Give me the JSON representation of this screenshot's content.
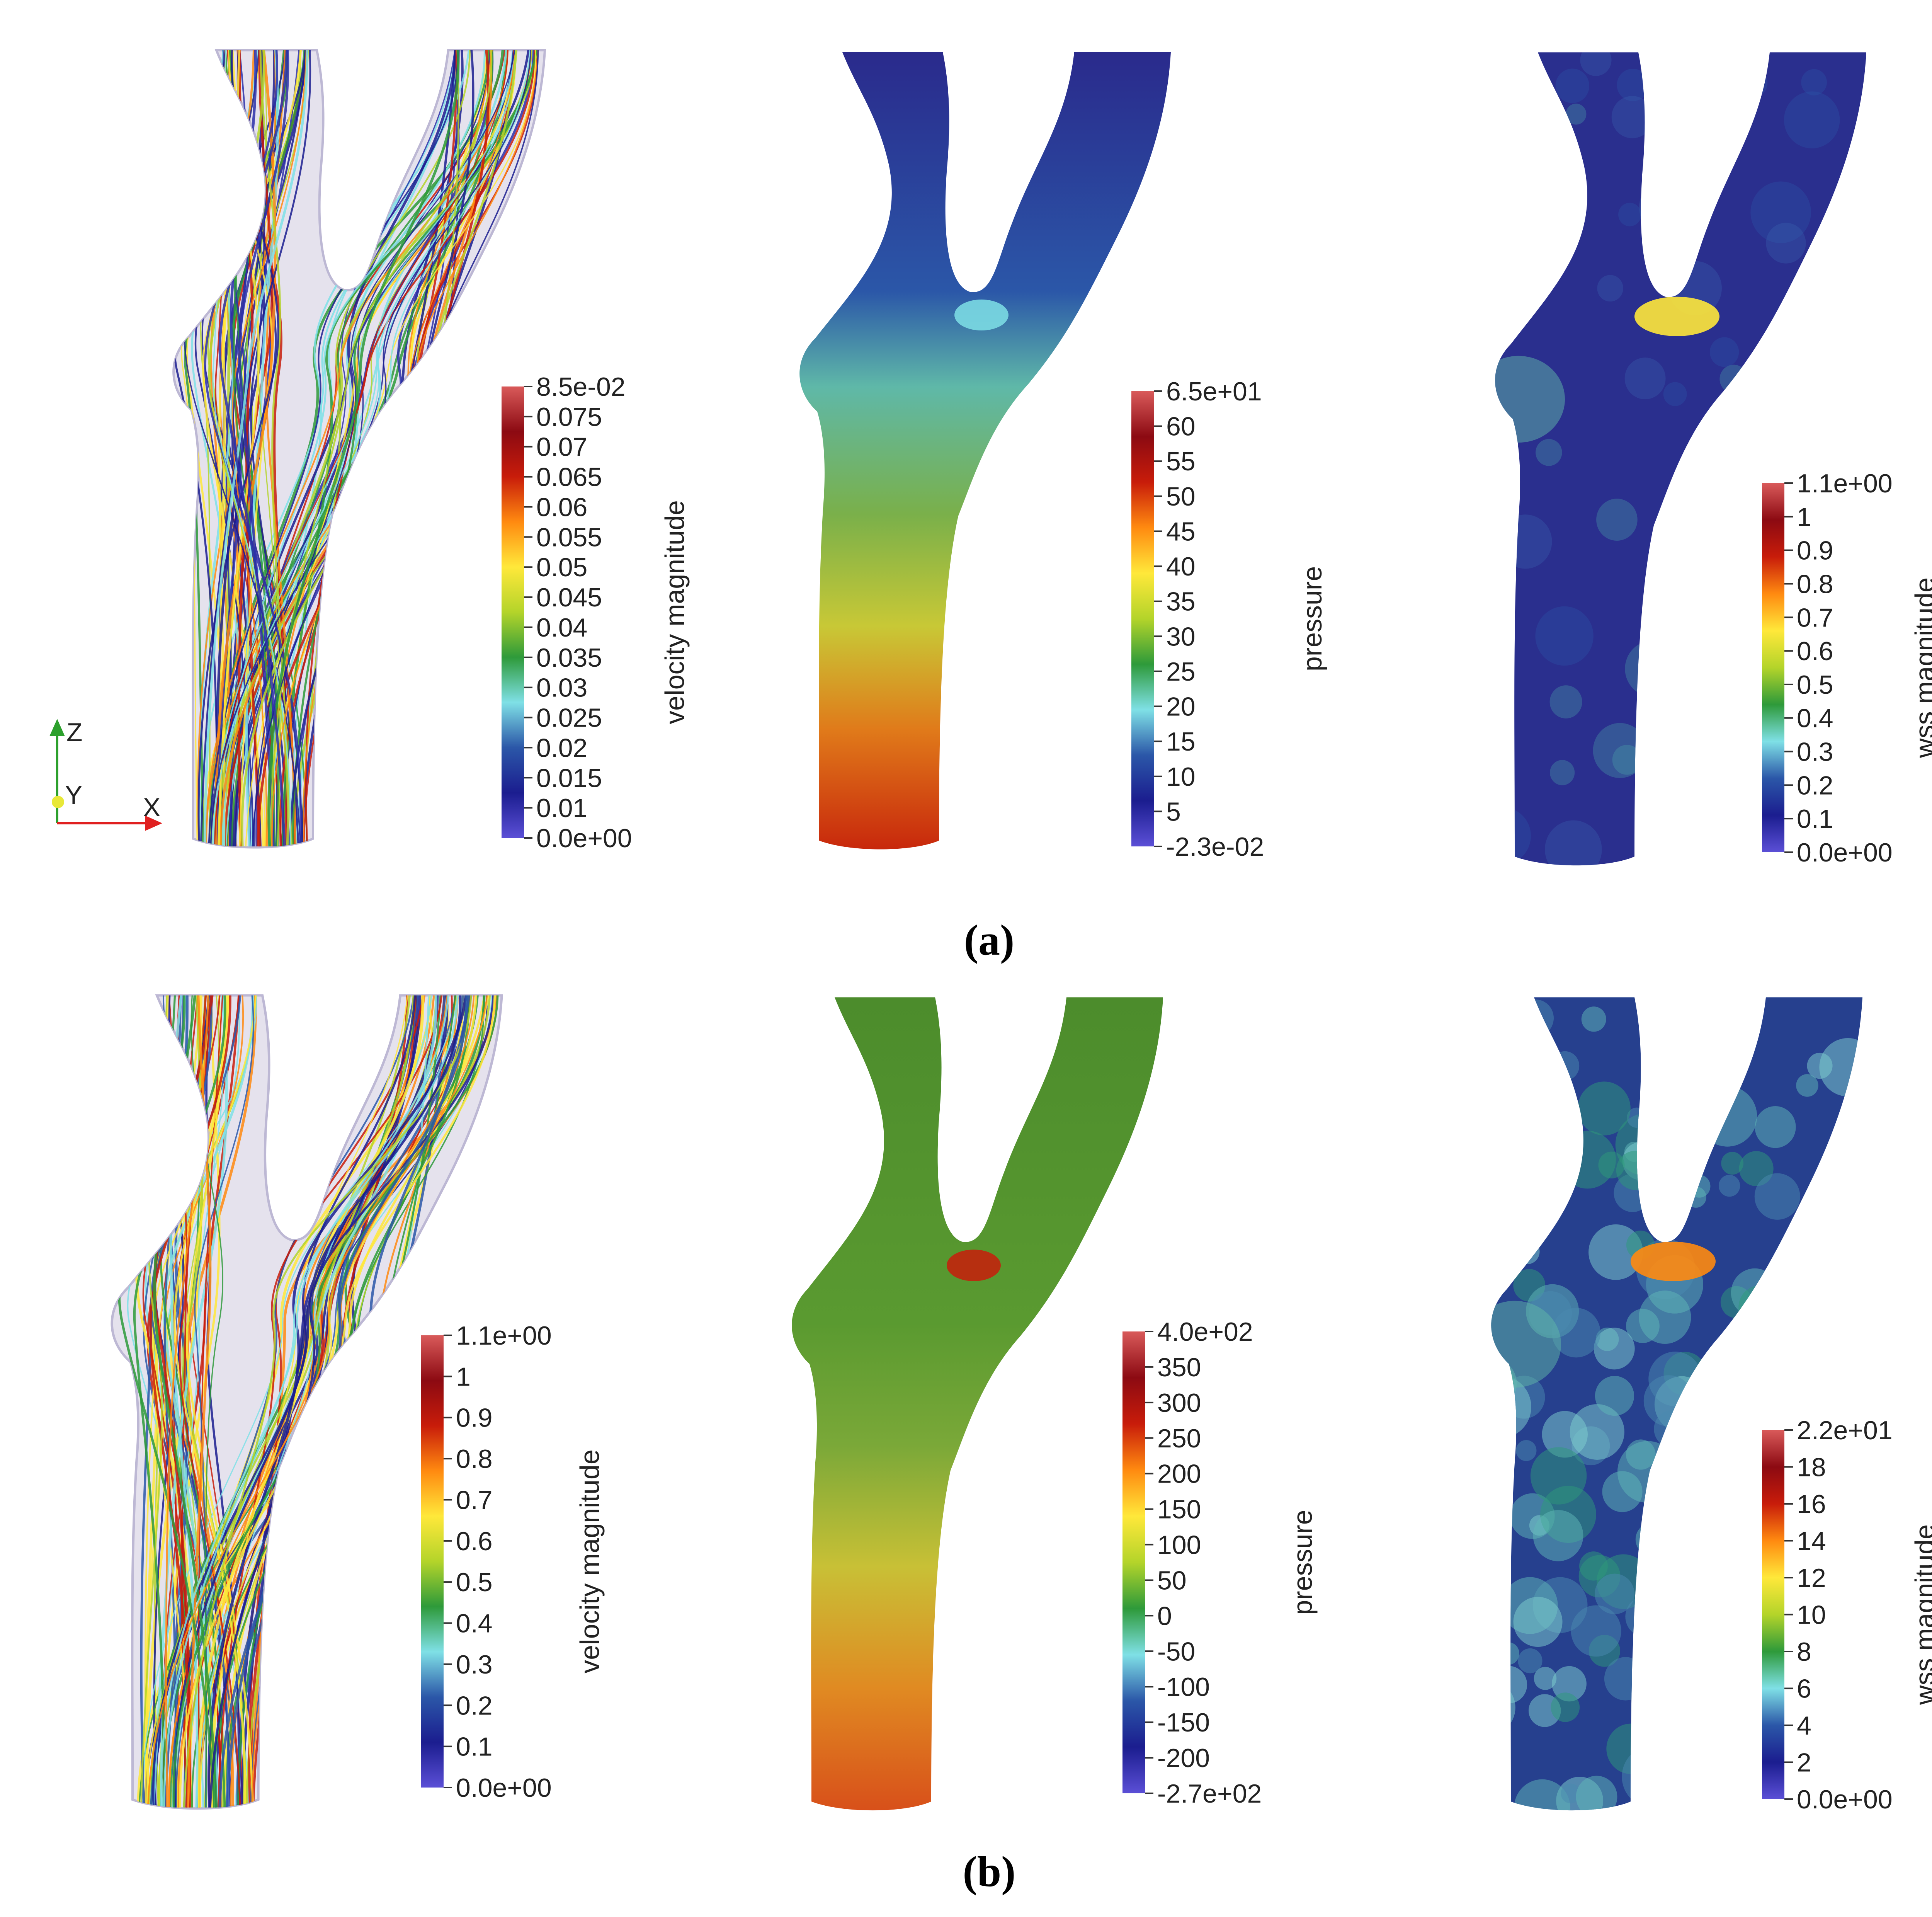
{
  "figure": {
    "rows": [
      {
        "caption": "(a)",
        "panels": [
          {
            "kind": "streamlines",
            "colorbar": {
              "label": "velocity magnitude",
              "max_label": "8.5e-02",
              "min_label": "0.0e+00",
              "ticks": [
                "0.075",
                "0.07",
                "0.065",
                "0.06",
                "0.055",
                "0.05",
                "0.045",
                "0.04",
                "0.035",
                "0.03",
                "0.025",
                "0.02",
                "0.015",
                "0.01"
              ]
            }
          },
          {
            "kind": "surface",
            "colorbar": {
              "label": "pressure",
              "max_label": "6.5e+01",
              "min_label": "-2.3e-02",
              "ticks": [
                "60",
                "55",
                "50",
                "45",
                "40",
                "35",
                "30",
                "25",
                "20",
                "15",
                "10",
                "5"
              ]
            }
          },
          {
            "kind": "surface",
            "colorbar": {
              "label": "wss magnitude",
              "max_label": "1.1e+00",
              "min_label": "0.0e+00",
              "ticks": [
                "1",
                "0.9",
                "0.8",
                "0.7",
                "0.6",
                "0.5",
                "0.4",
                "0.3",
                "0.2",
                "0.1"
              ]
            }
          }
        ]
      },
      {
        "caption": "(b)",
        "panels": [
          {
            "kind": "streamlines",
            "colorbar": {
              "label": "velocity magnitude",
              "max_label": "1.1e+00",
              "min_label": "0.0e+00",
              "ticks": [
                "1",
                "0.9",
                "0.8",
                "0.7",
                "0.6",
                "0.5",
                "0.4",
                "0.3",
                "0.2",
                "0.1"
              ]
            }
          },
          {
            "kind": "surface",
            "colorbar": {
              "label": "pressure",
              "max_label": "4.0e+02",
              "min_label": "-2.7e+02",
              "ticks": [
                "350",
                "300",
                "250",
                "200",
                "150",
                "100",
                "50",
                "0",
                "-50",
                "-100",
                "-150",
                "-200"
              ]
            }
          },
          {
            "kind": "surface",
            "colorbar": {
              "label": "wss magnitude",
              "max_label": "2.2e+01",
              "min_label": "0.0e+00",
              "ticks": [
                "18",
                "16",
                "14",
                "12",
                "10",
                "8",
                "6",
                "4",
                "2"
              ]
            }
          }
        ]
      }
    ],
    "axes_triad": {
      "x": "X",
      "y": "Y",
      "z": "Z"
    },
    "colormap": [
      "#5b4fd6",
      "#1b1d8f",
      "#2b57a8",
      "#7fe0e6",
      "#2e9a3a",
      "#b4d42a",
      "#ffe83a",
      "#ff8a10",
      "#c81c0a",
      "#8c0a12",
      "#d95a5a"
    ],
    "colors": {
      "vessel_ghost": "#cfcadf",
      "row_a_pressure_top": "#2a2a8c",
      "row_a_pressure_bottom": "#c8280c",
      "row_a_wss_body": "#2a2f8e",
      "row_b_pressure_top": "#4c8c2c",
      "row_b_pressure_bottom": "#d8501a",
      "row_b_wss_body": "#26408e"
    }
  }
}
